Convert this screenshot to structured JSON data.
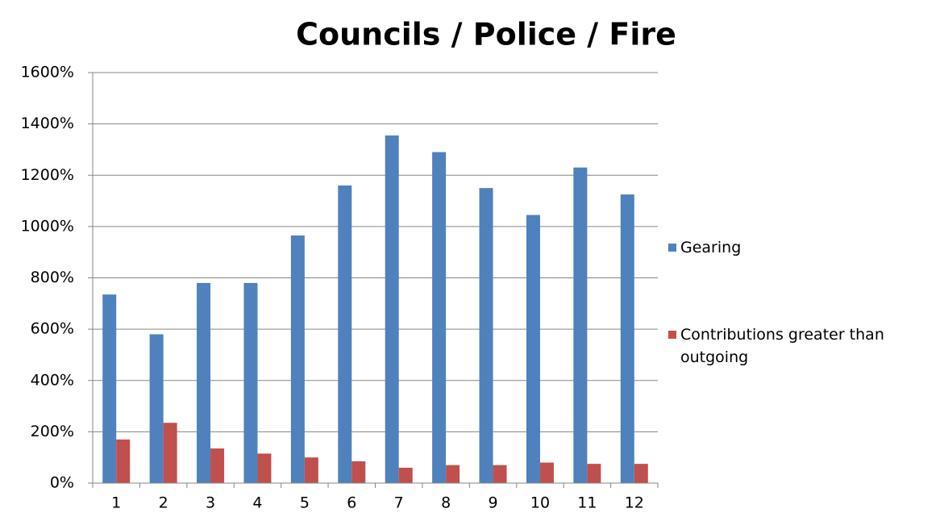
{
  "chart_data": {
    "type": "bar",
    "title": "Councils / Police / Fire",
    "categories": [
      "1",
      "2",
      "3",
      "4",
      "5",
      "6",
      "7",
      "8",
      "9",
      "10",
      "11",
      "12"
    ],
    "series": [
      {
        "name": "Gearing",
        "color": "#4f81bd",
        "values": [
          735,
          580,
          780,
          780,
          965,
          1160,
          1355,
          1290,
          1150,
          1045,
          1230,
          1125
        ]
      },
      {
        "name": "Contributions greater than outgoing",
        "color": "#c0504d",
        "values": [
          170,
          235,
          135,
          115,
          100,
          85,
          60,
          70,
          70,
          80,
          75,
          75
        ]
      }
    ],
    "ylim": [
      0,
      1600
    ],
    "yticks": [
      {
        "value": 0,
        "label": "0%"
      },
      {
        "value": 200,
        "label": "200%"
      },
      {
        "value": 400,
        "label": "400%"
      },
      {
        "value": 600,
        "label": "600%"
      },
      {
        "value": 800,
        "label": "800%"
      },
      {
        "value": 1000,
        "label": "1000%"
      },
      {
        "value": 1200,
        "label": "1200%"
      },
      {
        "value": 1400,
        "label": "1400%"
      },
      {
        "value": 1600,
        "label": "1600%"
      }
    ],
    "grid": true,
    "legend": "right"
  }
}
